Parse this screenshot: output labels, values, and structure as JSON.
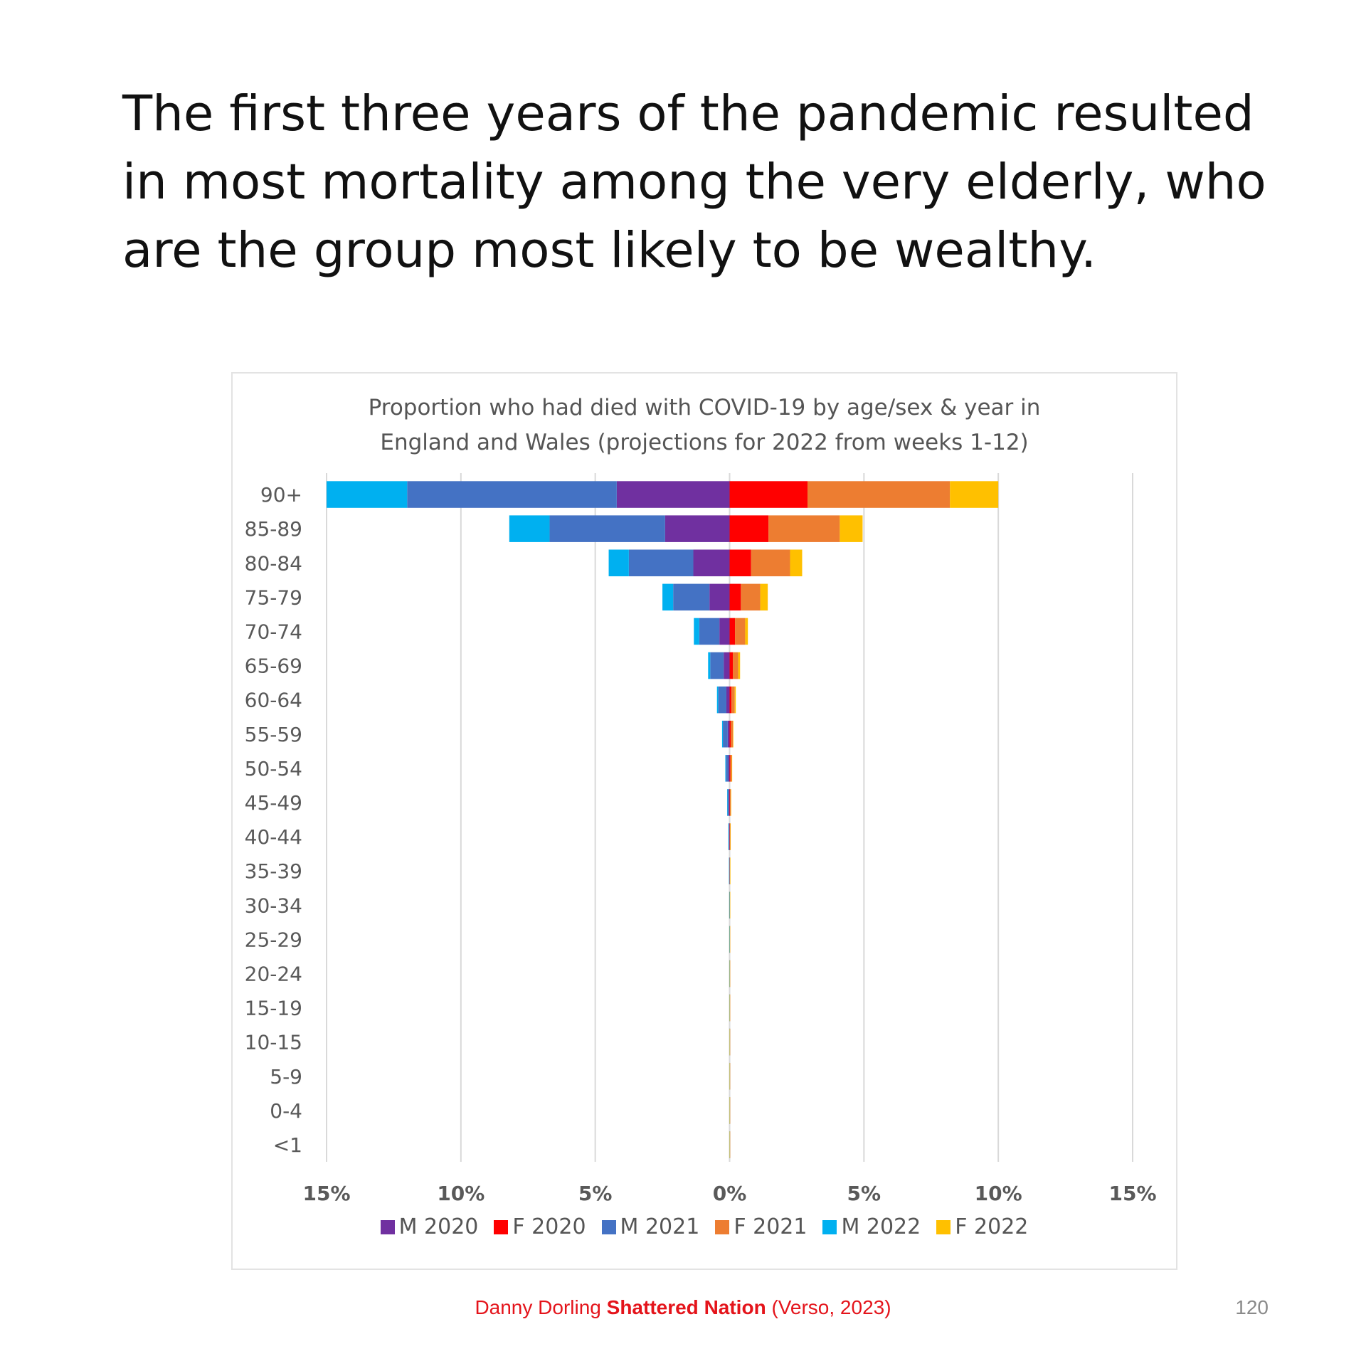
{
  "slide": {
    "headline": "The first three years of the pandemic resulted in most mortality among the very elderly, who are the group most likely to be wealthy.",
    "footer": {
      "author": "Danny Dorling",
      "book": "Shattered Nation",
      "publisher": "(Verso, 2023)"
    },
    "page_number": "120"
  },
  "chart_data": {
    "type": "bar",
    "orientation": "horizontal-diverging",
    "stacked": true,
    "title_lines": [
      "Proportion who had died with COVID-19 by age/sex & year in",
      "England and Wales (projections for 2022 from weeks 1-12)"
    ],
    "categories": [
      "90+",
      "85-89",
      "80-84",
      "75-79",
      "70-74",
      "65-69",
      "60-64",
      "55-59",
      "50-54",
      "45-49",
      "40-44",
      "35-39",
      "30-34",
      "25-29",
      "20-24",
      "15-19",
      "10-15",
      "5-9",
      "0-4",
      "<1"
    ],
    "x_ticks": [
      "15%",
      "10%",
      "5%",
      "0%",
      "5%",
      "10%",
      "15%"
    ],
    "xlim": [
      -15,
      15
    ],
    "grid": true,
    "legend_position": "bottom",
    "series": [
      {
        "name": "M 2020",
        "side": "left",
        "color": "#7030a0",
        "values": [
          4.2,
          2.4,
          1.35,
          0.75,
          0.38,
          0.22,
          0.12,
          0.07,
          0.04,
          0.02,
          0.01,
          0.005,
          0.003,
          0.002,
          0.001,
          0.001,
          0.0005,
          0.0005,
          0.0005,
          0.0005
        ]
      },
      {
        "name": "F 2020",
        "side": "right",
        "color": "#ff0000",
        "values": [
          2.9,
          1.45,
          0.8,
          0.42,
          0.2,
          0.12,
          0.07,
          0.04,
          0.03,
          0.015,
          0.01,
          0.005,
          0.003,
          0.002,
          0.001,
          0.001,
          0.0005,
          0.0005,
          0.0005,
          0.0005
        ]
      },
      {
        "name": "M 2021",
        "side": "left",
        "color": "#4472c4",
        "values": [
          7.8,
          4.3,
          2.4,
          1.35,
          0.75,
          0.5,
          0.3,
          0.18,
          0.1,
          0.06,
          0.03,
          0.015,
          0.01,
          0.005,
          0.003,
          0.002,
          0.001,
          0.001,
          0.001,
          0.001
        ]
      },
      {
        "name": "F 2021",
        "side": "right",
        "color": "#ed7d31",
        "values": [
          5.3,
          2.65,
          1.45,
          0.72,
          0.38,
          0.2,
          0.12,
          0.08,
          0.05,
          0.03,
          0.015,
          0.01,
          0.005,
          0.003,
          0.002,
          0.001,
          0.001,
          0.001,
          0.001,
          0.001
        ]
      },
      {
        "name": "M 2022",
        "side": "left",
        "color": "#00b0f0",
        "values": [
          3.0,
          1.5,
          0.75,
          0.4,
          0.2,
          0.08,
          0.05,
          0.03,
          0.02,
          0.01,
          0.005,
          0.003,
          0.002,
          0.001,
          0.001,
          0.0005,
          0.0005,
          0.0005,
          0.0005,
          0.0005
        ]
      },
      {
        "name": "F 2022",
        "side": "right",
        "color": "#ffc000",
        "values": [
          1.8,
          0.85,
          0.45,
          0.28,
          0.1,
          0.07,
          0.04,
          0.02,
          0.01,
          0.005,
          0.003,
          0.002,
          0.001,
          0.001,
          0.0005,
          0.0005,
          0.0005,
          0.0005,
          0.0005,
          0.0005
        ]
      }
    ]
  }
}
